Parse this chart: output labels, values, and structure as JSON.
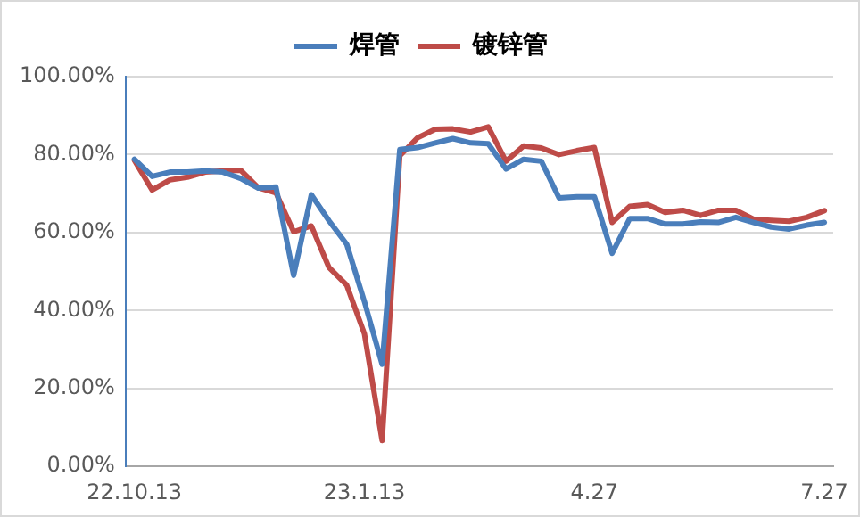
{
  "chart_data": {
    "type": "line",
    "categories": [
      "22.10.13",
      null,
      null,
      null,
      null,
      null,
      null,
      null,
      null,
      null,
      null,
      null,
      null,
      "23.1.13",
      null,
      null,
      null,
      null,
      null,
      null,
      null,
      null,
      null,
      null,
      null,
      null,
      "4.27",
      null,
      null,
      null,
      null,
      null,
      null,
      null,
      null,
      null,
      null,
      null,
      null,
      "7.27"
    ],
    "series": [
      {
        "name": "焊管",
        "color": "#4a7ebb",
        "values": [
          78.8,
          74.4,
          75.5,
          75.5,
          75.8,
          75.5,
          73.9,
          71.4,
          71.7,
          49,
          69.7,
          63,
          57,
          42.3,
          26.2,
          81.3,
          81.8,
          83,
          84.1,
          83,
          82.8,
          76.3,
          78.8,
          78.3,
          68.9,
          69.2,
          69.2,
          54.7,
          63.6,
          63.6,
          62.2,
          62.2,
          62.7,
          62.6,
          63.9,
          62.6,
          61.4,
          60.9,
          61.9,
          62.6
        ]
      },
      {
        "name": "镀锌管",
        "color": "#be4b48",
        "values": [
          78.5,
          70.9,
          73.5,
          74.2,
          75.5,
          75.8,
          76,
          71.5,
          70.2,
          60.2,
          61.7,
          51,
          46.5,
          34,
          6.6,
          79.7,
          84.3,
          86.5,
          86.6,
          85.8,
          87.1,
          78.3,
          82.2,
          81.7,
          80,
          81,
          81.8,
          62.6,
          66.7,
          67.2,
          65.2,
          65.7,
          64.4,
          65.7,
          65.7,
          63.4,
          63.1,
          62.9,
          63.9,
          65.6
        ]
      }
    ],
    "ylim": [
      0,
      100
    ],
    "yticks": [
      {
        "value": 0,
        "label": "0.00%"
      },
      {
        "value": 20,
        "label": "20.00%"
      },
      {
        "value": 40,
        "label": "40.00%"
      },
      {
        "value": 60,
        "label": "60.00%"
      },
      {
        "value": 80,
        "label": "80.00%"
      },
      {
        "value": 100,
        "label": "100.00%"
      }
    ],
    "grid": "y",
    "legend": "top",
    "marker": "none",
    "line_style": "solid"
  }
}
